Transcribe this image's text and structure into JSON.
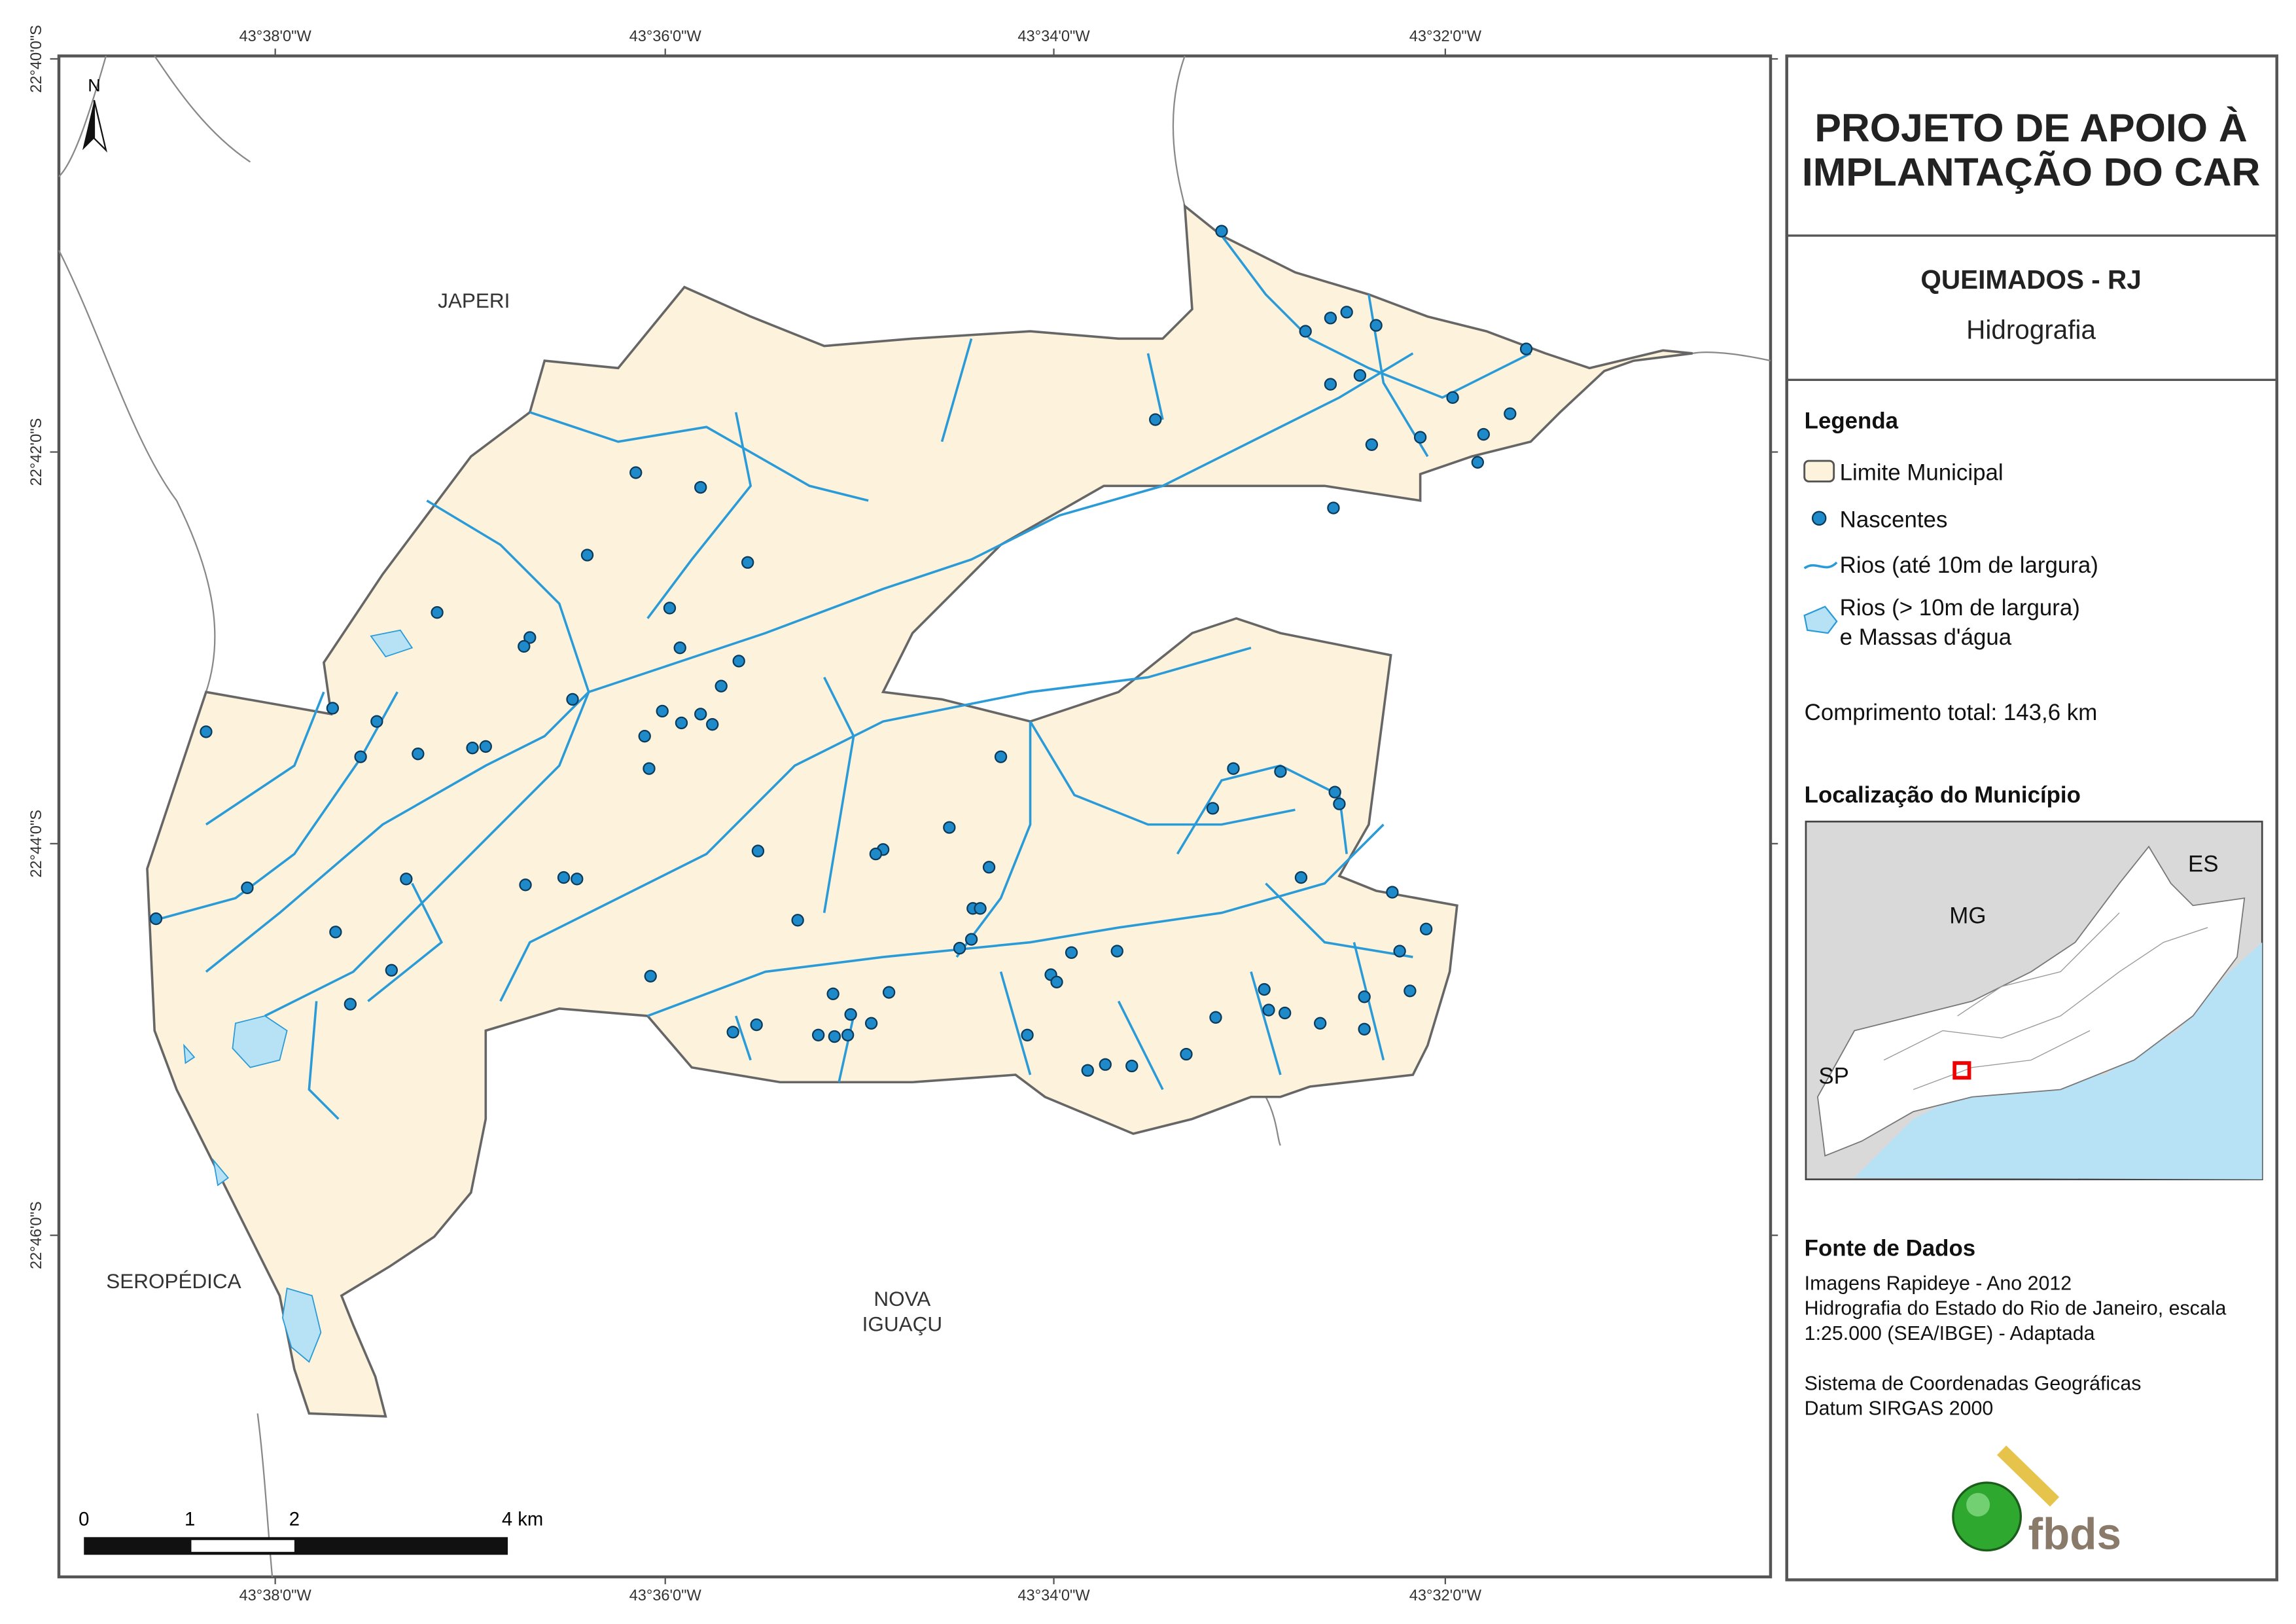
{
  "map": {
    "coordinates": {
      "top": [
        "43°38'0\"W",
        "43°36'0\"W",
        "43°34'0\"W",
        "43°32'0\"W"
      ],
      "bottom": [
        "43°38'0\"W",
        "43°36'0\"W",
        "43°34'0\"W",
        "43°32'0\"W"
      ],
      "left": [
        "22°40'0\"S",
        "22°42'0\"S",
        "22°44'0\"S",
        "22°46'0\"S"
      ]
    },
    "north": "N",
    "places": {
      "japeri": "JAPERI",
      "seropedica": "SEROPÉDICA",
      "nova_iguacu": [
        "NOVA",
        "IGUAÇU"
      ]
    },
    "scale_bar": [
      "0",
      "1",
      "2",
      "4 km"
    ]
  },
  "panel": {
    "title": [
      "PROJETO DE APOIO À",
      "IMPLANTAÇÃO DO CAR"
    ],
    "municipality": "QUEIMADOS - RJ",
    "theme": "Hidrografia",
    "legend": {
      "title": "Legenda",
      "items": [
        "Limite Municipal",
        "Nascentes",
        "Rios (até 10m de largura)",
        [
          "Rios (> 10m de largura)",
          "e Massas d'água"
        ]
      ]
    },
    "length": "Comprimento total:  143,6 km",
    "location": {
      "title": "Localização do Município",
      "labels": [
        "MG",
        "ES",
        "SP"
      ]
    },
    "sources": {
      "title": "Fonte de Dados",
      "lines": [
        "Imagens Rapideye - Ano 2012",
        "Hidrografia do Estado do Rio de Janeiro, escala",
        "1:25.000 (SEA/IBGE) - Adaptada",
        "Sistema de Coordenadas Geográficas",
        "Datum SIRGAS 2000"
      ]
    },
    "logo": "fbds"
  }
}
